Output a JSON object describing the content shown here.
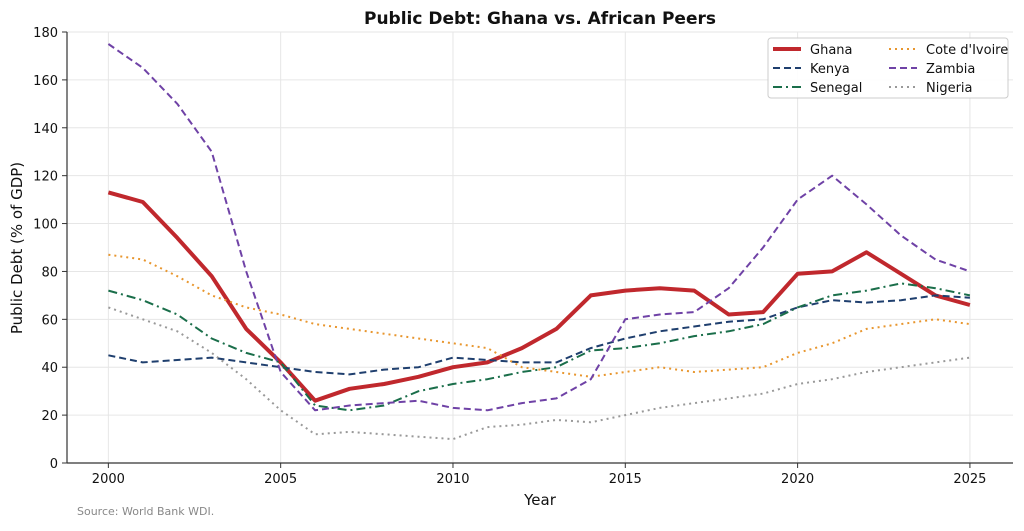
{
  "chart_data": {
    "type": "line",
    "title": "Public Debt: Ghana vs. African Peers",
    "xlabel": "Year",
    "ylabel": "Public Debt (% of GDP)",
    "xlim": [
      1998.8,
      2026.25
    ],
    "ylim": [
      0,
      180
    ],
    "xticks": [
      2000,
      2005,
      2010,
      2015,
      2020,
      2025
    ],
    "yticks": [
      0,
      20,
      40,
      60,
      80,
      100,
      120,
      140,
      160,
      180
    ],
    "grid": true,
    "legend_position": "top-right",
    "source": "Source: World Bank WDI.",
    "x": [
      2000,
      2001,
      2002,
      2003,
      2004,
      2005,
      2006,
      2007,
      2008,
      2009,
      2010,
      2011,
      2012,
      2013,
      2014,
      2015,
      2016,
      2017,
      2018,
      2019,
      2020,
      2021,
      2022,
      2023,
      2024,
      2025
    ],
    "series": [
      {
        "name": "Ghana",
        "color": "#c0282d",
        "style": "solid",
        "values": [
          113,
          109,
          94,
          78,
          56,
          42,
          26,
          31,
          33,
          36,
          40,
          42,
          48,
          56,
          70,
          72,
          73,
          72,
          62,
          63,
          79,
          80,
          88,
          79,
          70,
          66
        ]
      },
      {
        "name": "Kenya",
        "color": "#1f3f6e",
        "style": "dashed",
        "values": [
          45,
          42,
          43,
          44,
          42,
          40,
          38,
          37,
          39,
          40,
          44,
          43,
          42,
          42,
          48,
          52,
          55,
          57,
          59,
          60,
          65,
          68,
          67,
          68,
          70,
          69
        ]
      },
      {
        "name": "Senegal",
        "color": "#1a6e4a",
        "style": "dashdot",
        "values": [
          72,
          68,
          62,
          52,
          46,
          42,
          24,
          22,
          24,
          30,
          33,
          35,
          38,
          40,
          47,
          48,
          50,
          53,
          55,
          58,
          65,
          70,
          72,
          75,
          73,
          70
        ]
      },
      {
        "name": "Cote d'Ivoire",
        "color": "#e8962e",
        "style": "dotted",
        "values": [
          87,
          85,
          78,
          70,
          65,
          62,
          58,
          56,
          54,
          52,
          50,
          48,
          40,
          38,
          36,
          38,
          40,
          38,
          39,
          40,
          46,
          50,
          56,
          58,
          60,
          58
        ]
      },
      {
        "name": "Zambia",
        "color": "#6f42a6",
        "style": "dashed",
        "values": [
          175,
          165,
          150,
          130,
          80,
          38,
          22,
          24,
          25,
          26,
          23,
          22,
          25,
          27,
          35,
          60,
          62,
          63,
          73,
          90,
          110,
          120,
          108,
          95,
          85,
          80
        ]
      },
      {
        "name": "Nigeria",
        "color": "#999999",
        "style": "dotted",
        "values": [
          65,
          60,
          55,
          46,
          35,
          22,
          12,
          13,
          12,
          11,
          10,
          15,
          16,
          18,
          17,
          20,
          23,
          25,
          27,
          29,
          33,
          35,
          38,
          40,
          42,
          44
        ]
      }
    ]
  }
}
